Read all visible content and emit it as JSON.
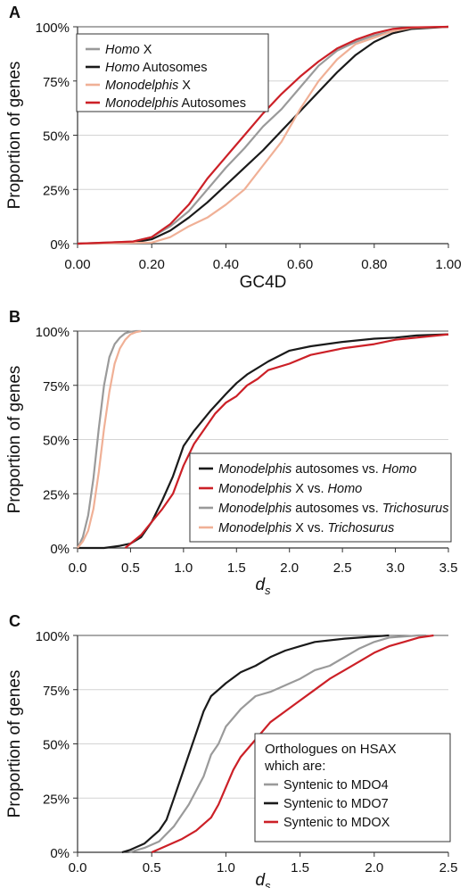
{
  "chart_data": [
    {
      "panel_label": "A",
      "type": "line",
      "title": "",
      "xlabel": "GC4D",
      "ylabel": "Proportion of genes",
      "xlim": [
        0,
        1
      ],
      "ylim": [
        0,
        100
      ],
      "x_ticks": [
        "0.00",
        "0.20",
        "0.40",
        "0.60",
        "0.80",
        "1.00"
      ],
      "y_ticks": [
        "0%",
        "25%",
        "50%",
        "75%",
        "100%"
      ],
      "grid": true,
      "legend_position": "top-left",
      "series": [
        {
          "name": "Homo X",
          "name_italic": "Homo",
          "name_rest": " X",
          "color": "#9a9a9a",
          "x": [
            0.0,
            0.15,
            0.2,
            0.25,
            0.3,
            0.35,
            0.4,
            0.45,
            0.5,
            0.55,
            0.6,
            0.65,
            0.7,
            0.75,
            0.8,
            0.85,
            0.9,
            1.0
          ],
          "y": [
            0,
            1,
            3,
            8,
            15,
            25,
            35,
            44,
            54,
            62,
            72,
            82,
            89,
            93,
            96,
            98,
            99.5,
            100
          ]
        },
        {
          "name": "Homo Autosomes",
          "name_italic": "Homo",
          "name_rest": " Autosomes",
          "color": "#1a1a1a",
          "x": [
            0.0,
            0.15,
            0.2,
            0.25,
            0.3,
            0.35,
            0.4,
            0.45,
            0.5,
            0.55,
            0.6,
            0.65,
            0.7,
            0.75,
            0.8,
            0.85,
            0.9,
            1.0
          ],
          "y": [
            0,
            0.5,
            2,
            6,
            12,
            19,
            27,
            35,
            43,
            52,
            61,
            70,
            79,
            87,
            93,
            97,
            99,
            100
          ]
        },
        {
          "name": "Monodelphis X",
          "name_italic": "Monodelphis",
          "name_rest": " X",
          "color": "#f0b096",
          "x": [
            0.0,
            0.2,
            0.25,
            0.3,
            0.35,
            0.4,
            0.45,
            0.5,
            0.55,
            0.6,
            0.65,
            0.7,
            0.75,
            0.8,
            0.85,
            0.9,
            1.0
          ],
          "y": [
            0,
            0.5,
            3,
            8,
            12,
            18,
            25,
            36,
            47,
            62,
            75,
            85,
            92,
            95,
            98,
            99.5,
            100
          ]
        },
        {
          "name": "Monodelphis Autosomes",
          "name_italic": "Monodelphis",
          "name_rest": " Autosomes",
          "color": "#cc2027",
          "x": [
            0.0,
            0.15,
            0.2,
            0.25,
            0.3,
            0.35,
            0.4,
            0.45,
            0.5,
            0.55,
            0.6,
            0.65,
            0.7,
            0.75,
            0.8,
            0.85,
            0.9,
            1.0
          ],
          "y": [
            0,
            1,
            3,
            9,
            18,
            30,
            40,
            50,
            60,
            69,
            77,
            84,
            90,
            94,
            97,
            99,
            99.7,
            100
          ]
        }
      ]
    },
    {
      "panel_label": "B",
      "type": "line",
      "title": "",
      "xlabel": "d",
      "xlabel_sub": "S",
      "ylabel": "Proportion of genes",
      "xlim": [
        0,
        3.5
      ],
      "ylim": [
        0,
        100
      ],
      "x_ticks": [
        "0.0",
        "0.5",
        "1.0",
        "1.5",
        "2.0",
        "2.5",
        "3.0",
        "3.5"
      ],
      "y_ticks": [
        "0%",
        "25%",
        "50%",
        "75%",
        "100%"
      ],
      "grid": true,
      "legend_position": "bottom-right",
      "series": [
        {
          "name": "Monodelphis autosomes vs. Homo",
          "name_italic": "Monodelphis",
          "name_rest": " autosomes vs. ",
          "name_italic2": "Homo",
          "color": "#1a1a1a",
          "x": [
            0.0,
            0.25,
            0.4,
            0.5,
            0.6,
            0.7,
            0.8,
            0.9,
            1.0,
            1.1,
            1.25,
            1.4,
            1.5,
            1.6,
            1.8,
            2.0,
            2.2,
            2.5,
            2.8,
            3.0,
            3.2,
            3.5
          ],
          "y": [
            0,
            0,
            1,
            2,
            5,
            12,
            22,
            33,
            47,
            54,
            63,
            71,
            76,
            80,
            86,
            91,
            93,
            95,
            96.5,
            97,
            98,
            98.5
          ]
        },
        {
          "name": "Monodelphis X vs. Homo",
          "name_italic": "Monodelphis",
          "name_rest": " X vs. ",
          "name_italic2": "Homo",
          "color": "#cc2027",
          "x": [
            0.45,
            0.5,
            0.6,
            0.7,
            0.8,
            0.9,
            1.0,
            1.1,
            1.2,
            1.3,
            1.4,
            1.5,
            1.6,
            1.7,
            1.8,
            2.0,
            2.2,
            2.5,
            2.8,
            3.0,
            3.2,
            3.5
          ],
          "y": [
            0,
            2,
            6,
            12,
            18,
            25,
            38,
            48,
            55,
            62,
            67,
            70,
            75,
            78,
            82,
            85,
            89,
            92,
            94,
            96,
            97,
            98.5
          ]
        },
        {
          "name": "Monodelphis autosomes vs. Trichosurus",
          "name_italic": "Monodelphis",
          "name_rest": " autosomes vs. ",
          "name_italic2": "Trichosurus",
          "color": "#9a9a9a",
          "x": [
            0.0,
            0.05,
            0.1,
            0.15,
            0.2,
            0.25,
            0.3,
            0.35,
            0.4,
            0.45,
            0.5,
            0.55,
            0.6
          ],
          "y": [
            0,
            5,
            15,
            32,
            55,
            75,
            88,
            94,
            97,
            99,
            99.7,
            100,
            100
          ]
        },
        {
          "name": "Monodelphis X vs. Trichosurus",
          "name_italic": "Monodelphis",
          "name_rest": " X vs. ",
          "name_italic2": "Trichosurus",
          "color": "#f0b096",
          "x": [
            0.0,
            0.05,
            0.1,
            0.15,
            0.2,
            0.25,
            0.3,
            0.35,
            0.4,
            0.45,
            0.5,
            0.55,
            0.6
          ],
          "y": [
            0,
            3,
            8,
            18,
            35,
            55,
            72,
            85,
            92,
            96,
            98.5,
            99.5,
            100
          ]
        }
      ]
    },
    {
      "panel_label": "C",
      "type": "line",
      "title": "",
      "xlabel": "d",
      "xlabel_sub": "S",
      "ylabel": "Proportion of genes",
      "xlim": [
        0,
        2.5
      ],
      "ylim": [
        0,
        100
      ],
      "x_ticks": [
        "0.0",
        "0.5",
        "1.0",
        "1.5",
        "2.0",
        "2.5"
      ],
      "y_ticks": [
        "0%",
        "25%",
        "50%",
        "75%",
        "100%"
      ],
      "grid": true,
      "legend_position": "bottom-right",
      "legend_title": "Orthologues on HSAX which are:",
      "legend_title_lines": [
        "Orthologues on HSAX",
        "which are:"
      ],
      "series": [
        {
          "name": "Syntenic to MDO4",
          "color": "#9a9a9a",
          "x": [
            0.35,
            0.45,
            0.55,
            0.65,
            0.75,
            0.85,
            0.9,
            0.95,
            1.0,
            1.1,
            1.2,
            1.3,
            1.4,
            1.5,
            1.6,
            1.7,
            1.8,
            1.9,
            2.0,
            2.1,
            2.2,
            2.3,
            2.35
          ],
          "y": [
            0,
            2,
            5,
            12,
            22,
            35,
            45,
            50,
            58,
            66,
            72,
            74,
            77,
            80,
            84,
            86,
            90,
            94,
            97,
            99,
            99.5,
            100,
            100
          ]
        },
        {
          "name": "Syntenic to MDO7",
          "color": "#1a1a1a",
          "x": [
            0.3,
            0.35,
            0.45,
            0.55,
            0.6,
            0.65,
            0.7,
            0.75,
            0.8,
            0.85,
            0.9,
            0.95,
            1.0,
            1.1,
            1.2,
            1.3,
            1.4,
            1.5,
            1.6,
            1.8,
            2.0,
            2.1
          ],
          "y": [
            0,
            1,
            4,
            10,
            15,
            25,
            35,
            45,
            55,
            65,
            72,
            75,
            78,
            83,
            86,
            90,
            93,
            95,
            97,
            98.5,
            99.5,
            100
          ]
        },
        {
          "name": "Syntenic to MDOX",
          "color": "#cc2027",
          "x": [
            0.5,
            0.6,
            0.7,
            0.8,
            0.9,
            0.95,
            1.0,
            1.05,
            1.1,
            1.2,
            1.3,
            1.4,
            1.5,
            1.6,
            1.7,
            1.8,
            1.9,
            2.0,
            2.1,
            2.2,
            2.3,
            2.4
          ],
          "y": [
            0,
            3,
            6,
            10,
            16,
            22,
            30,
            38,
            44,
            52,
            60,
            65,
            70,
            75,
            80,
            84,
            88,
            92,
            95,
            97,
            99,
            100
          ]
        }
      ]
    }
  ]
}
